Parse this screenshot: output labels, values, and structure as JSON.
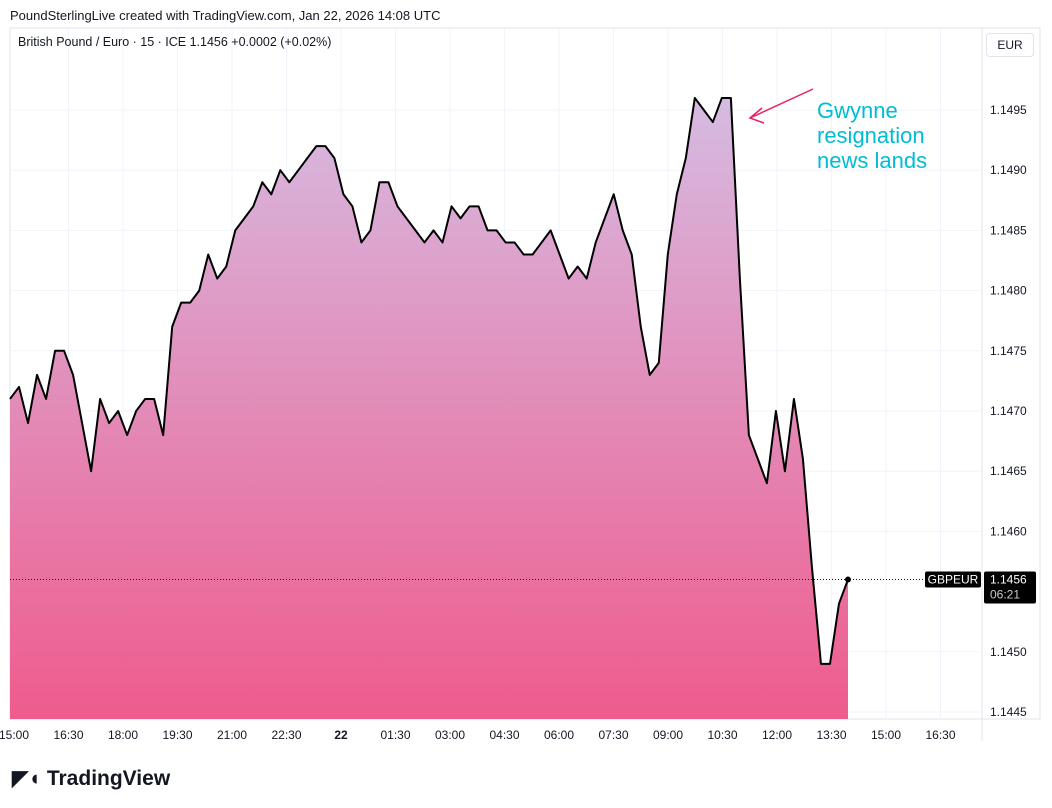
{
  "header": {
    "credit": "PoundSterlingLive created with TradingView.com, Jan 22, 2026 14:08 UTC",
    "legend": "British Pound / Euro · 15 · ICE  1.1456  +0.0002 (+0.02%)",
    "currency": "EUR"
  },
  "footer": {
    "logo": "TradingView"
  },
  "colors": {
    "line": "#000000",
    "fill_top": "#d6bbe2",
    "fill_bottom": "#ef5b8d",
    "annotation": "#00bcd4",
    "arrow": "#e91e63"
  },
  "chart_data": {
    "type": "area",
    "title": "British Pound / Euro · 15 · ICE",
    "symbol": "GBPEUR",
    "interval_minutes": 15,
    "last": {
      "price": "1.1456",
      "countdown": "06:21"
    },
    "ylim": [
      1.14435,
      1.15
    ],
    "yticks": [
      "1.1495",
      "1.1490",
      "1.1485",
      "1.1480",
      "1.1475",
      "1.1470",
      "1.1465",
      "1.1460",
      "1.1450",
      "1.1445"
    ],
    "xticks": [
      "15:00",
      "16:30",
      "18:00",
      "19:30",
      "21:00",
      "22:30",
      "22",
      "01:30",
      "03:00",
      "04:30",
      "06:00",
      "07:30",
      "09:00",
      "10:30",
      "12:00",
      "13:30",
      "15:00",
      "16:30"
    ],
    "values": [
      1.1471,
      1.1472,
      1.1469,
      1.1473,
      1.1471,
      1.1475,
      1.1475,
      1.1473,
      1.1469,
      1.1465,
      1.1471,
      1.1469,
      1.147,
      1.1468,
      1.147,
      1.1471,
      1.1471,
      1.1468,
      1.1477,
      1.1479,
      1.1479,
      1.148,
      1.1483,
      1.1481,
      1.1482,
      1.1485,
      1.1486,
      1.1487,
      1.1489,
      1.1488,
      1.149,
      1.1489,
      1.149,
      1.1491,
      1.1492,
      1.1492,
      1.1491,
      1.1488,
      1.1487,
      1.1484,
      1.1485,
      1.1489,
      1.1489,
      1.1487,
      1.1486,
      1.1485,
      1.1484,
      1.1485,
      1.1484,
      1.1487,
      1.1486,
      1.1487,
      1.1487,
      1.1485,
      1.1485,
      1.1484,
      1.1484,
      1.1483,
      1.1483,
      1.1484,
      1.1485,
      1.1483,
      1.1481,
      1.1482,
      1.1481,
      1.1484,
      1.1486,
      1.1488,
      1.1485,
      1.1483,
      1.1477,
      1.1473,
      1.1474,
      1.1483,
      1.1488,
      1.1491,
      1.1496,
      1.1495,
      1.1494,
      1.1496,
      1.1496,
      1.1481,
      1.1468,
      1.1466,
      1.1464,
      1.147,
      1.1465,
      1.1471,
      1.1466,
      1.1457,
      1.1449,
      1.1449,
      1.1454,
      1.1456
    ],
    "annotation": "Gwynne resignation news lands"
  }
}
